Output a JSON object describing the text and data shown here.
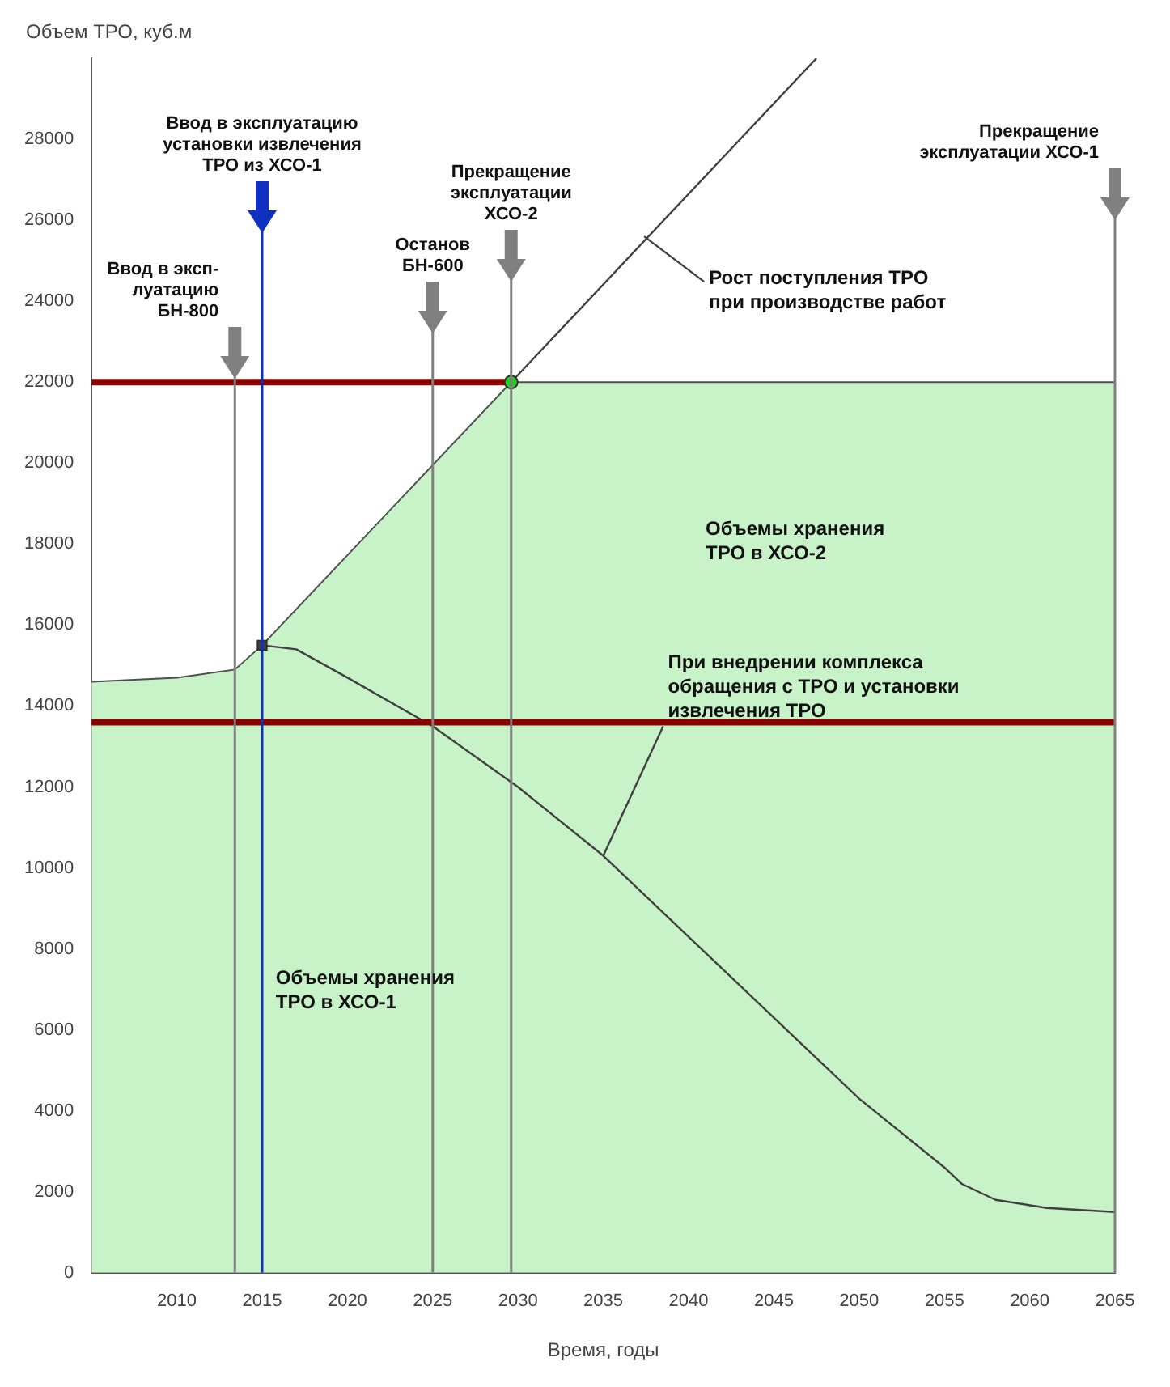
{
  "chart_data": {
    "type": "line",
    "xlabel": "Время, годы",
    "ylabel": "Объем ТРО, куб.м",
    "xlim": [
      2005,
      2065
    ],
    "xticks": [
      2010,
      2015,
      2020,
      2025,
      2030,
      2035,
      2040,
      2045,
      2050,
      2055,
      2060,
      2065
    ],
    "ylim": [
      0,
      30000
    ],
    "yticks": [
      0,
      2000,
      4000,
      6000,
      8000,
      10000,
      12000,
      14000,
      16000,
      18000,
      20000,
      22000,
      24000,
      26000,
      28000
    ],
    "grid": false,
    "legend": false,
    "series": [
      {
        "type": "area",
        "color": "#c8f2c8",
        "x": [
          2005,
          2010,
          2013.4,
          2015,
          2029.6,
          2065
        ],
        "values": [
          14600,
          14700,
          14900,
          15500,
          22000,
          22000
        ]
      },
      {
        "color": "#404040",
        "x": [
          2029.6,
          2047.5
        ],
        "values": [
          22000,
          30000
        ]
      },
      {
        "color": "#8b0000",
        "x": [
          2005,
          2029.6
        ],
        "values": [
          22000,
          22000
        ]
      },
      {
        "color": "#404040",
        "x": [
          2015,
          2017,
          2020,
          2025,
          2030,
          2035,
          2040,
          2045,
          2050,
          2055,
          2056,
          2058,
          2061,
          2065
        ],
        "values": [
          15500,
          15400,
          14700,
          13500,
          12000,
          10300,
          8300,
          6300,
          4300,
          2600,
          2200,
          1800,
          1600,
          1500
        ]
      },
      {
        "type": "scatter",
        "marker": "square",
        "color": "#404040",
        "x": [
          2015
        ],
        "values": [
          15500
        ]
      },
      {
        "type": "scatter",
        "marker": "circle",
        "color": "#22cc22",
        "x": [
          2029.6
        ],
        "values": [
          22000
        ]
      }
    ],
    "ref_lines": [
      {
        "axis": "y",
        "value": 13600,
        "color": "#8b0000"
      },
      {
        "axis": "x",
        "value": 2013.4,
        "color": "#808080",
        "label": "Ввод в эксп-\nлуатацию\nБН-800"
      },
      {
        "axis": "x",
        "value": 2015,
        "color": "#1030c0",
        "label": "Ввод в эксплуатацию\nустановки извлечения\nТРО из ХСО-1"
      },
      {
        "axis": "x",
        "value": 2025,
        "color": "#808080",
        "label": "Останов\nБН-600"
      },
      {
        "axis": "x",
        "value": 2029.6,
        "color": "#808080",
        "label": "Прекращение\nэксплуатации\nХСО-2"
      },
      {
        "axis": "x",
        "value": 2065,
        "color": "#808080",
        "label": "Прекращение\nэксплуатации ХСО-1"
      }
    ],
    "annotations": [
      {
        "text": "Рост поступления ТРО\nпри производстве работ",
        "x": 2037.4,
        "y": 25600
      },
      "Объемы хранения\nТРО в ХСО-2",
      "Объемы хранения\nТРО в ХСО-1",
      {
        "text": "При внедрении комплекса\nобращения с ТРО и установки\nизвлечения ТРО",
        "x": 2035,
        "y": 10300
      }
    ]
  }
}
